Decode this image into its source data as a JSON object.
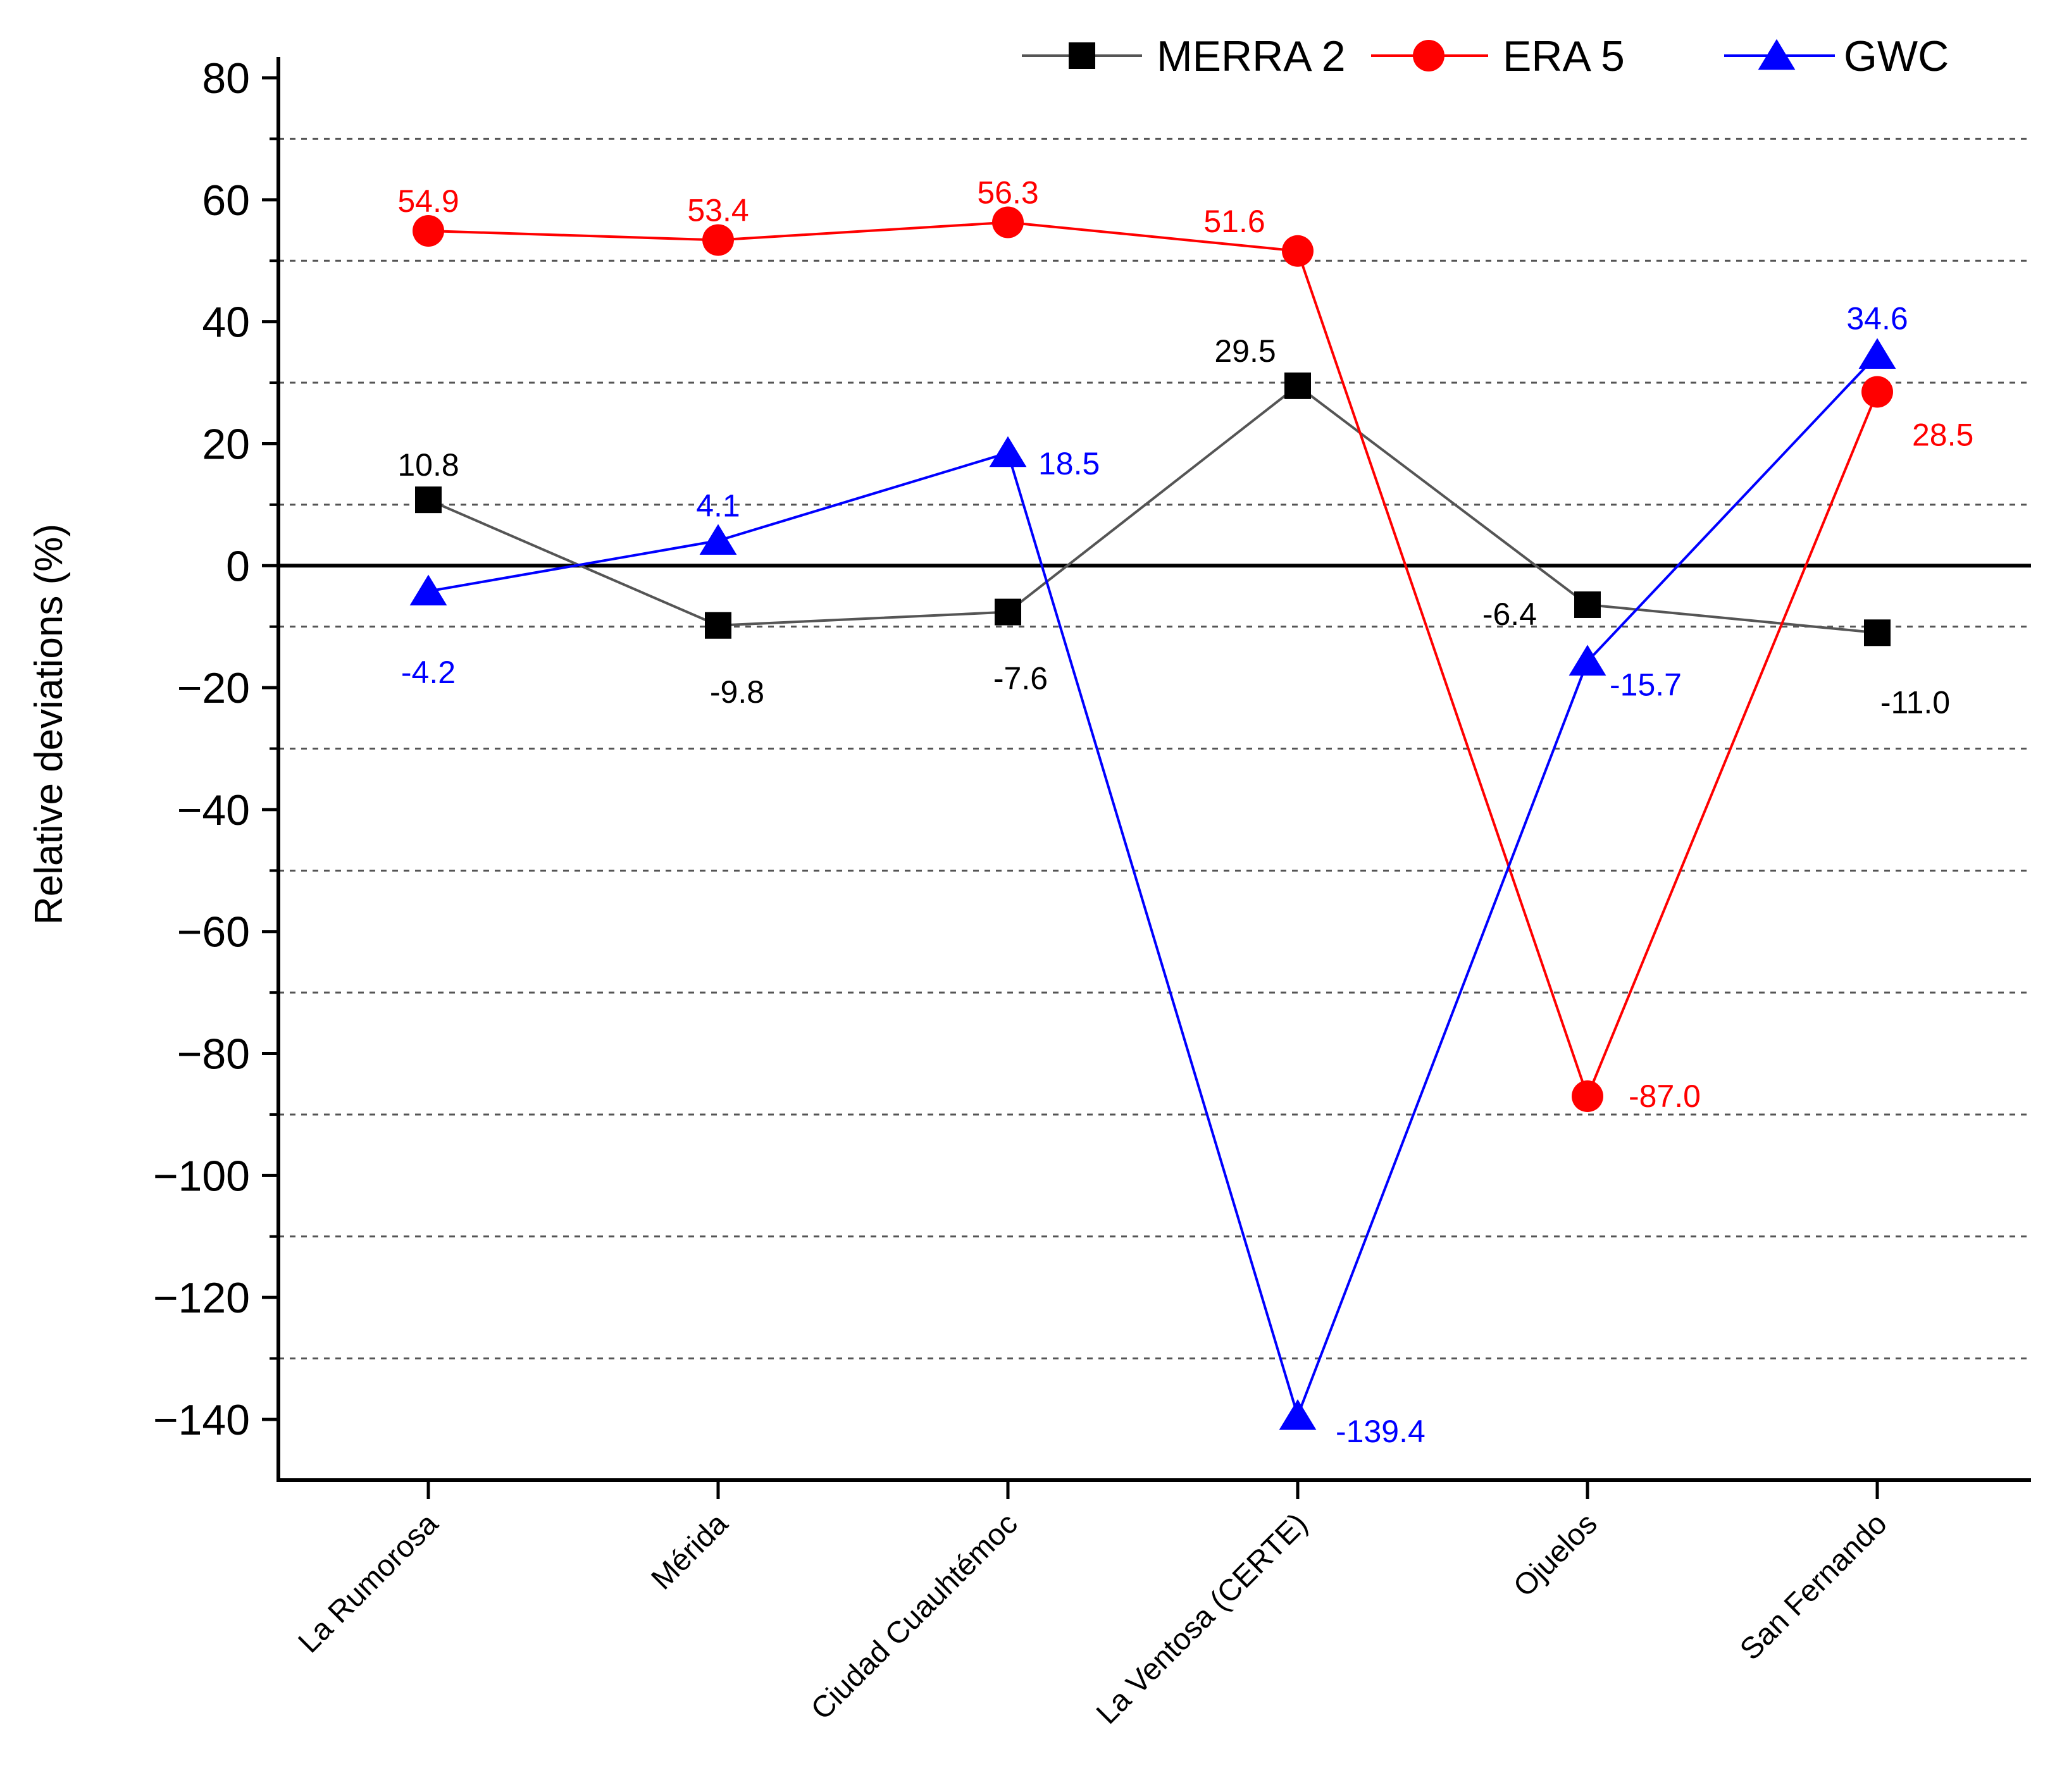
{
  "chart_data": {
    "type": "line",
    "categories": [
      "La Rumorosa",
      "Mérida",
      "Ciudad Cuauhtémoc",
      "La Ventosa (CERTE)",
      "Ojuelos",
      "San Fernando"
    ],
    "ylabel": "Relative deviations (%)",
    "xlabel": "",
    "ylim": [
      -150,
      80
    ],
    "yticks": [
      80,
      60,
      40,
      20,
      0,
      -20,
      -40,
      -60,
      -80,
      -100,
      -120,
      -140
    ],
    "ytick_labels": [
      "80",
      "60",
      "40",
      "20",
      "0",
      "−20",
      "−40",
      "−60",
      "−80",
      "−100",
      "−120",
      "−140"
    ],
    "gridlines": [
      70,
      50,
      30,
      10,
      -10,
      -30,
      -50,
      -70,
      -90,
      -110,
      -130
    ],
    "zero_line": true,
    "legend_position": "top-right",
    "series": [
      {
        "name": "MERRA 2",
        "marker": "square",
        "color": "#000000",
        "line_color": "#555555",
        "values": [
          10.8,
          -9.8,
          -7.6,
          29.5,
          -6.4,
          -11.0
        ],
        "labels": [
          "10.8",
          "-9.8",
          "-7.6",
          "29.5",
          "-6.4",
          "-11.0"
        ]
      },
      {
        "name": "ERA 5",
        "marker": "circle",
        "color": "#ff0000",
        "line_color": "#ff0000",
        "values": [
          54.9,
          53.4,
          56.3,
          51.6,
          -87.0,
          28.5
        ],
        "labels": [
          "54.9",
          "53.4",
          "56.3",
          "51.6",
          "-87.0",
          "28.5"
        ]
      },
      {
        "name": "GWC",
        "marker": "triangle",
        "color": "#0000ff",
        "line_color": "#0000ff",
        "values": [
          -4.2,
          4.1,
          18.5,
          -139.4,
          -15.7,
          34.6
        ],
        "labels": [
          "-4.2",
          "4.1",
          "18.5",
          "-139.4",
          "-15.7",
          "34.6"
        ]
      }
    ]
  }
}
